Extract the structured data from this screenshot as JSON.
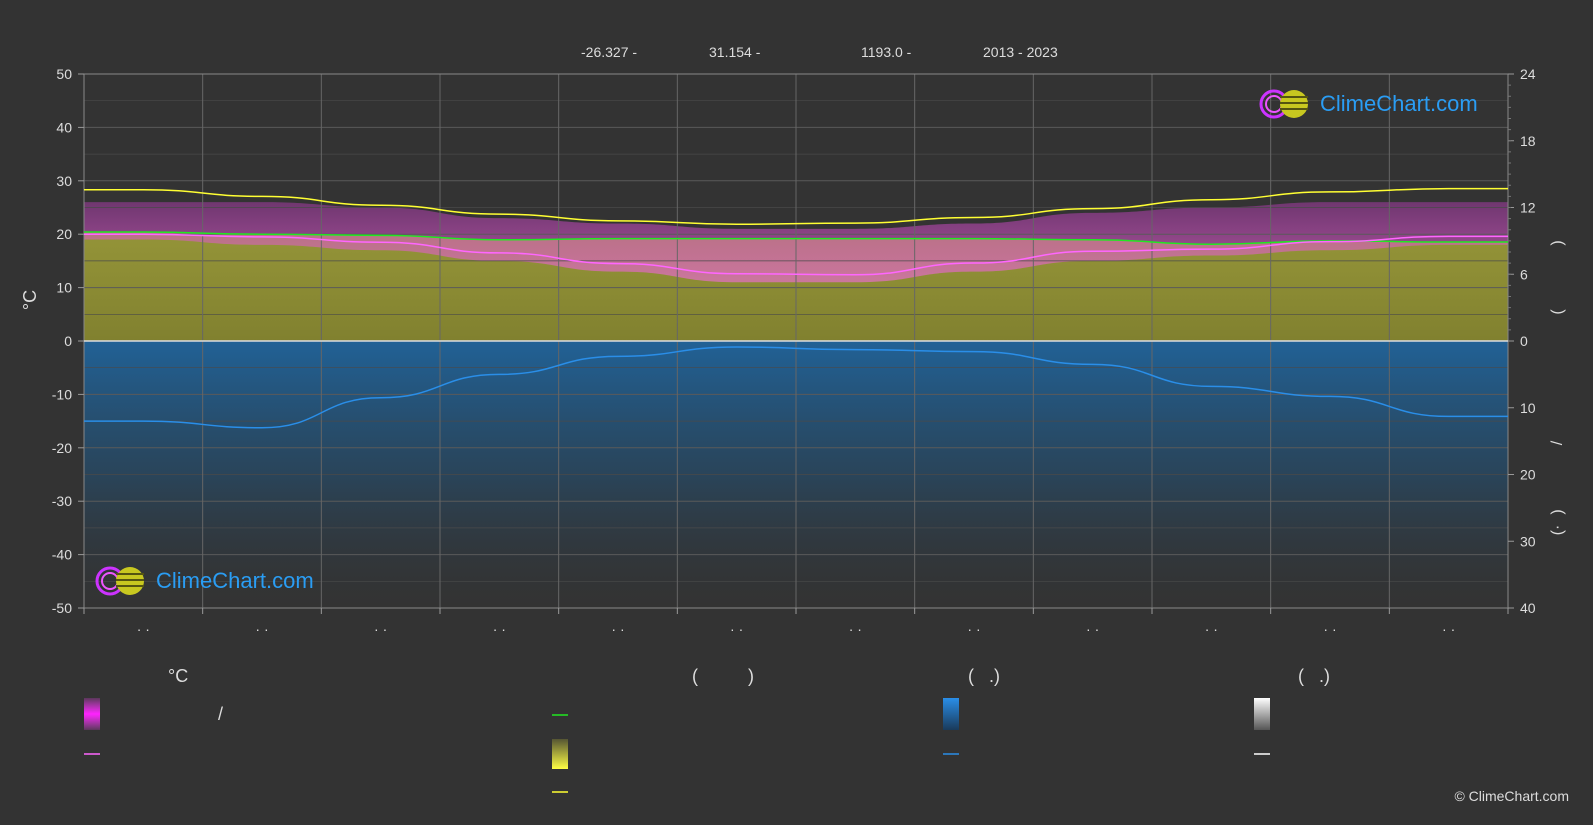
{
  "header": {
    "lat": "-26.327 -",
    "lon": "31.154 -",
    "elev": "1193.0 -",
    "years": "2013 - 2023"
  },
  "axes": {
    "left_unit": "°C",
    "left_ticks": [
      50,
      40,
      30,
      20,
      10,
      0,
      -10,
      -20,
      -30,
      -40,
      -50
    ],
    "right_top_ticks": [
      24,
      18,
      12,
      6,
      0
    ],
    "right_bottom_ticks": [
      10,
      20,
      30,
      40
    ],
    "month_labels": [
      "· ·",
      "· ·",
      "· ·",
      "· ·",
      "· ·",
      "· ·",
      "· ·",
      "· ·",
      "· ·",
      "· ·",
      "· ·",
      "· ·"
    ],
    "right_label_parts": [
      ")",
      "(",
      "/",
      ")",
      "(·"
    ]
  },
  "legend": {
    "col1_header": "°C",
    "col1_item1": "/",
    "col2_header": "(          )",
    "col3_header": "(   .)",
    "col4_header": "(   .)"
  },
  "colors": {
    "sunshine": "#21e821",
    "mean_temp": "#ff66ff",
    "daylight": "#ffff33",
    "precip": "#2a8ee8",
    "temp_band": "#e040e0",
    "sun_band": "#b8b830",
    "precip_band": "#1e6aa8"
  },
  "copyright": "© ClimeChart.com",
  "logo_text": "ClimeChart.com",
  "chart_data": {
    "type": "line",
    "x": [
      "Jan",
      "Feb",
      "Mar",
      "Apr",
      "May",
      "Jun",
      "Jul",
      "Aug",
      "Sep",
      "Oct",
      "Nov",
      "Dec"
    ],
    "ylim": [
      -50,
      50
    ],
    "y2lim_top": [
      0,
      24
    ],
    "y2lim_bottom": [
      0,
      40
    ],
    "series": [
      {
        "key": "daylight",
        "axis": "right_top",
        "values": [
          13.6,
          13.0,
          12.2,
          11.4,
          10.8,
          10.5,
          10.6,
          11.1,
          11.9,
          12.7,
          13.4,
          13.7
        ]
      },
      {
        "key": "sunshine",
        "axis": "right_top",
        "values": [
          9.8,
          9.6,
          9.5,
          9.1,
          9.2,
          9.2,
          9.2,
          9.2,
          9.1,
          8.7,
          9.0,
          8.9
        ]
      },
      {
        "key": "mean_temp",
        "axis": "left",
        "values": [
          20.0,
          19.5,
          18.5,
          16.5,
          14.5,
          12.6,
          12.4,
          14.6,
          16.8,
          17.2,
          18.6,
          19.6
        ]
      },
      {
        "key": "precip",
        "axis": "right_bottom",
        "values": [
          12.0,
          13.0,
          8.5,
          5.0,
          2.3,
          0.9,
          1.3,
          1.6,
          3.5,
          6.8,
          8.3,
          11.3
        ]
      }
    ],
    "bands": [
      {
        "key": "temp_band",
        "range_top": [
          26,
          26,
          25,
          23,
          22,
          21,
          21,
          22,
          24,
          25,
          26,
          26
        ],
        "range_bottom": [
          19,
          18,
          17,
          15,
          13,
          11,
          11,
          13,
          15,
          16,
          17,
          18
        ]
      }
    ]
  }
}
